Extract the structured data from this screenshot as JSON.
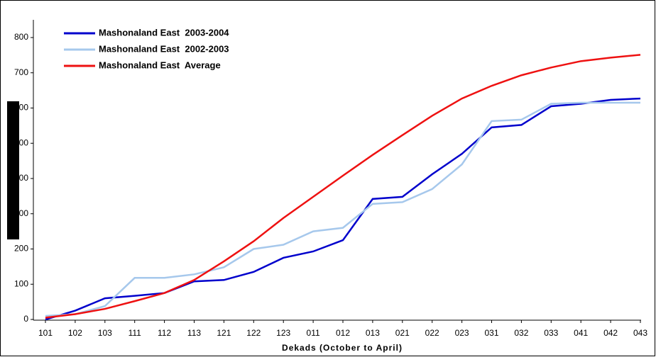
{
  "chart_data": {
    "type": "line",
    "x_label": "Dekads (October to April)",
    "categories": [
      "101",
      "102",
      "103",
      "111",
      "112",
      "113",
      "121",
      "122",
      "123",
      "011",
      "012",
      "013",
      "021",
      "022",
      "023",
      "031",
      "032",
      "033",
      "041",
      "042",
      "043"
    ],
    "series": [
      {
        "name": "Mashonaland East  2003-2004",
        "color": "#0000cc",
        "values": [
          0,
          25,
          60,
          67,
          75,
          108,
          112,
          135,
          175,
          193,
          225,
          342,
          348,
          412,
          470,
          545,
          552,
          605,
          612,
          623,
          627
        ]
      },
      {
        "name": "Mashonaland East  2002-2003",
        "color": "#a6c8ec",
        "values": [
          10,
          15,
          38,
          118,
          118,
          128,
          148,
          200,
          212,
          250,
          260,
          328,
          333,
          370,
          440,
          563,
          567,
          612,
          615,
          615,
          615
        ]
      },
      {
        "name": "Mashonaland East  Average",
        "color": "#ee1111",
        "values": [
          5,
          15,
          30,
          52,
          75,
          112,
          165,
          222,
          288,
          348,
          408,
          467,
          523,
          578,
          627,
          663,
          693,
          715,
          733,
          743,
          751
        ]
      }
    ],
    "ylim": [
      0,
      800
    ],
    "yticks": [
      0,
      100,
      200,
      300,
      400,
      500,
      600,
      700,
      800
    ]
  }
}
